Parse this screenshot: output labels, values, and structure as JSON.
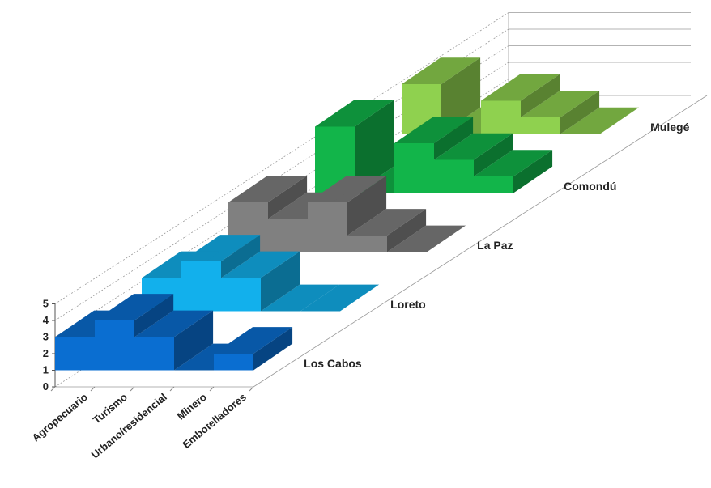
{
  "chart_data": {
    "type": "area",
    "style": "3d-stepped",
    "categories": [
      "Agropecuario",
      "Turismo",
      "Urbano/residencial",
      "Minero",
      "Embotelladores"
    ],
    "ylim": [
      0,
      5
    ],
    "yticks": [
      0,
      1,
      2,
      3,
      4,
      5
    ],
    "series": [
      {
        "name": "Los Cabos",
        "values": [
          3,
          4,
          3,
          1,
          2
        ],
        "color": "#0a6ed1"
      },
      {
        "name": "Loreto",
        "values": [
          3,
          4,
          3,
          1,
          1
        ],
        "color": "#12b0ec"
      },
      {
        "name": "La Paz",
        "values": [
          4,
          3,
          4,
          2,
          1
        ],
        "color": "#808080"
      },
      {
        "name": "Comondú",
        "values": [
          5,
          1,
          4,
          3,
          2
        ],
        "color": "#12b54a"
      },
      {
        "name": "Mulegé",
        "values": [
          4,
          1,
          3,
          2,
          1
        ],
        "color": "#8fd14f"
      }
    ]
  }
}
